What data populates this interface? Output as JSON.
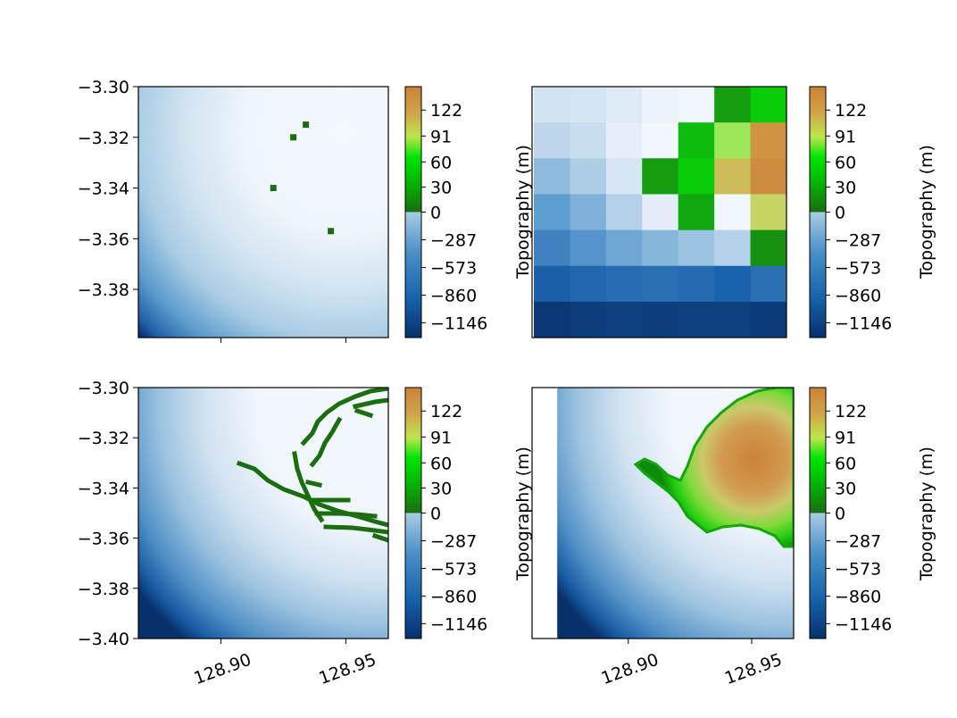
{
  "chart_data": [
    {
      "type": "heatmap",
      "panel": "top-left",
      "description_text": "",
      "ylabel": "",
      "yticks": [
        -3.3,
        -3.32,
        -3.34,
        -3.36,
        -3.38
      ],
      "ytick_labels": [
        "−3.30",
        "−3.32",
        "−3.34",
        "−3.36",
        "−3.38"
      ],
      "ylim": [
        -3.399,
        -3.3
      ],
      "xticks": [
        128.9,
        128.95
      ],
      "xtick_labels": [],
      "xlim": [
        128.867,
        128.967
      ],
      "grid": false,
      "land_points": [
        [
          128.934,
          -3.315
        ],
        [
          128.929,
          -3.32
        ],
        [
          128.921,
          -3.34
        ],
        [
          128.944,
          -3.357
        ]
      ]
    },
    {
      "type": "heatmap",
      "panel": "top-right",
      "ylabel": "Topography (m)",
      "grid_size": [
        7,
        7
      ],
      "values": [
        [
          -250,
          -230,
          -180,
          -100,
          -40,
          20,
          45
        ],
        [
          -350,
          -300,
          -140,
          -60,
          35,
          85,
          135
        ],
        [
          -500,
          -400,
          -220,
          20,
          45,
          110,
          140
        ],
        [
          -650,
          -550,
          -380,
          -150,
          25,
          -40,
          100
        ],
        [
          -800,
          -700,
          -600,
          -520,
          -450,
          -380,
          15
        ],
        [
          -1000,
          -950,
          -920,
          -900,
          -930,
          -980,
          -900
        ],
        [
          -1250,
          -1220,
          -1200,
          -1220,
          -1210,
          -1200,
          -1230
        ]
      ],
      "grid": false
    },
    {
      "type": "heatmap",
      "panel": "bottom-left",
      "ylabel": "",
      "yticks": [
        -3.3,
        -3.32,
        -3.34,
        -3.36,
        -3.38,
        -3.4
      ],
      "ytick_labels": [
        "−3.30",
        "−3.32",
        "−3.34",
        "−3.36",
        "−3.38",
        "−3.40"
      ],
      "ylim": [
        -3.4,
        -3.3
      ],
      "xticks": [
        128.9,
        128.95
      ],
      "xtick_labels": [
        "128.90",
        "128.95"
      ],
      "xlim": [
        128.867,
        128.967
      ],
      "grid": false
    },
    {
      "type": "heatmap",
      "panel": "bottom-right",
      "ylabel": "Topography (m)",
      "xticks": [
        128.9,
        128.95
      ],
      "xtick_labels": [
        "128.90",
        "128.95"
      ],
      "xlim": [
        128.861,
        128.967
      ],
      "grid": false
    }
  ],
  "colorbar": {
    "tick_values": [
      122,
      91,
      60,
      30,
      0,
      -287,
      -573,
      -860,
      -1146
    ],
    "tick_labels": [
      "122",
      "91",
      "60",
      "30",
      "0",
      "−287",
      "−573",
      "−860",
      "−1146"
    ],
    "range": [
      -1300,
      150
    ],
    "colors": {
      "deep_ocean": "#08306b",
      "mid_ocean": "#4a90c8",
      "shallow_ocean": "#f4f9fe",
      "land_low": "#1a6e0f",
      "land_mid": "#00e600",
      "land_high": "#cc8236"
    }
  },
  "ylabel_right": "Topography (m)"
}
